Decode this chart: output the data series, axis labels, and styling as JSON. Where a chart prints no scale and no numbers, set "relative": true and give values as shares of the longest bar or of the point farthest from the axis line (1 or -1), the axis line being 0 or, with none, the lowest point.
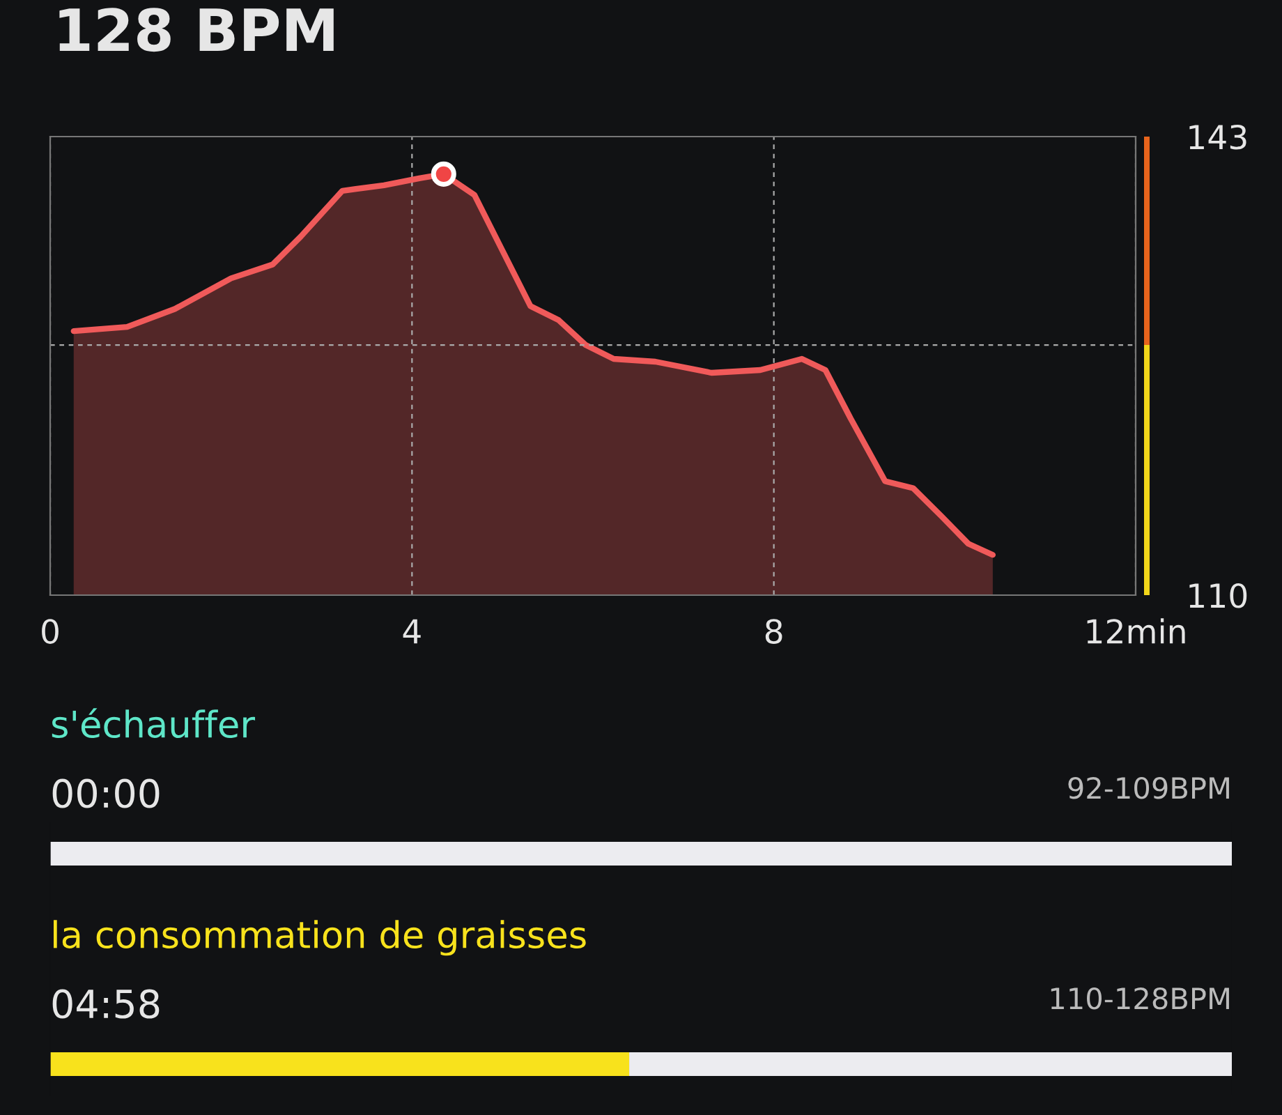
{
  "chart_data": [
    {
      "type": "area",
      "title": "128 BPM",
      "xlim": [
        0,
        12
      ],
      "xticks": [
        0,
        4,
        8,
        {
          "value": 12,
          "label": "12min"
        }
      ],
      "ylim": [
        110,
        143
      ],
      "yticks": [
        110,
        143
      ],
      "grid": "x",
      "ref_lines": [
        {
          "axis": "y",
          "value": 128,
          "label": null,
          "color": "#aaaaaa",
          "line_style": "dashed"
        }
      ],
      "series": [
        {
          "type": "area",
          "color": "#f05a5a",
          "x": [
            0.26,
            0.85,
            1.38,
            2.0,
            2.46,
            2.77,
            3.23,
            3.69,
            4.08,
            4.35,
            4.69,
            5.0,
            5.31,
            5.62,
            5.92,
            6.23,
            6.69,
            7.31,
            7.85,
            8.31,
            8.57,
            8.85,
            9.23,
            9.54,
            9.85,
            10.15,
            10.42
          ],
          "values": [
            129.0,
            129.3,
            130.6,
            132.8,
            133.8,
            135.8,
            139.1,
            139.5,
            140.0,
            140.3,
            138.8,
            134.8,
            130.8,
            129.8,
            128.0,
            127.0,
            126.8,
            126.0,
            126.2,
            127.0,
            126.2,
            122.7,
            118.2,
            117.7,
            115.7,
            113.7,
            112.9
          ]
        },
        {
          "type": "scatter",
          "color": "#f04545",
          "x": [
            4.35
          ],
          "values": [
            140.3
          ],
          "marker": "circle"
        }
      ]
    },
    {
      "type": "bar",
      "orientation": "horizontal",
      "stacked": true,
      "relative": true,
      "categories": [
        "s'échauffer",
        "la consommation de graisses"
      ],
      "annotations": [
        "00:00",
        "92-109BPM",
        "04:58",
        "110-128BPM"
      ],
      "series": [
        {
          "colors": [
            "#5ee6c8",
            "#f8e21c"
          ],
          "values": [
            0,
            0.49
          ]
        },
        {
          "color": "#ececf0",
          "values": [
            1,
            0.51
          ]
        }
      ]
    }
  ]
}
